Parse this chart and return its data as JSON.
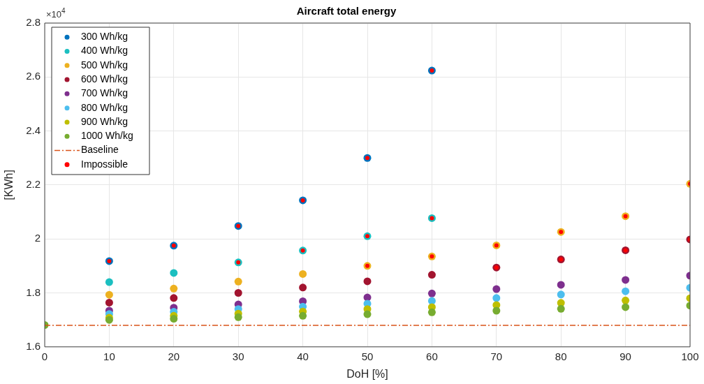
{
  "chart_data": {
    "type": "scatter",
    "title": "Aircraft total energy",
    "xlabel": "DoH [%]",
    "ylabel": "[KWh]",
    "annotations": [
      "×10$^{4}$"
    ],
    "xlim": [
      0,
      100
    ],
    "xticks": [
      0,
      10,
      20,
      30,
      40,
      50,
      60,
      70,
      80,
      90,
      100
    ],
    "ylim": [
      1.6,
      2.8
    ],
    "yticks": [
      1.6,
      1.8,
      2,
      2.2,
      2.4,
      2.6,
      2.8
    ],
    "grid": true,
    "legend": "top left",
    "marker": "circle",
    "series": [
      {
        "name": "300 Wh/kg",
        "color": "#0072bd",
        "x": [
          10,
          20,
          30,
          40,
          50,
          60
        ],
        "values": [
          1.918,
          1.975,
          2.048,
          2.143,
          2.3,
          2.624
        ]
      },
      {
        "name": "400 Wh/kg",
        "color": "#1bbfc0",
        "x": [
          10,
          20,
          30,
          40,
          50,
          60
        ],
        "values": [
          1.84,
          1.874,
          1.913,
          1.957,
          2.01,
          2.077
        ]
      },
      {
        "name": "500 Wh/kg",
        "color": "#edb120",
        "x": [
          10,
          20,
          30,
          40,
          50,
          60,
          70,
          80,
          90,
          100
        ],
        "values": [
          1.793,
          1.816,
          1.842,
          1.87,
          1.9,
          1.935,
          1.976,
          2.026,
          2.084,
          2.204
        ]
      },
      {
        "name": "600 Wh/kg",
        "color": "#a2142f",
        "x": [
          10,
          20,
          30,
          40,
          50,
          60,
          70,
          80,
          90,
          100
        ],
        "values": [
          1.764,
          1.781,
          1.8,
          1.82,
          1.843,
          1.867,
          1.894,
          1.924,
          1.958,
          1.998
        ]
      },
      {
        "name": "700 Wh/kg",
        "color": "#7e2f8e",
        "x": [
          10,
          20,
          30,
          40,
          50,
          60,
          70,
          80,
          90,
          100
        ],
        "values": [
          1.734,
          1.745,
          1.757,
          1.769,
          1.783,
          1.798,
          1.814,
          1.83,
          1.848,
          1.864
        ]
      },
      {
        "name": "800 Wh/kg",
        "color": "#4dbeee",
        "x": [
          10,
          20,
          30,
          40,
          50,
          60,
          70,
          80,
          90,
          100
        ],
        "values": [
          1.722,
          1.73,
          1.74,
          1.749,
          1.76,
          1.77,
          1.781,
          1.794,
          1.806,
          1.819
        ]
      },
      {
        "name": "900 Wh/kg",
        "color": "#bfbf00",
        "x": [
          10,
          20,
          30,
          40,
          50,
          60,
          70,
          80,
          90,
          100
        ],
        "values": [
          1.708,
          1.715,
          1.723,
          1.731,
          1.74,
          1.747,
          1.755,
          1.763,
          1.772,
          1.78
        ]
      },
      {
        "name": "1000 Wh/kg",
        "color": "#77ac30",
        "x": [
          0,
          10,
          20,
          30,
          40,
          50,
          60,
          70,
          80,
          90,
          100
        ],
        "values": [
          1.681,
          1.7,
          1.704,
          1.71,
          1.715,
          1.721,
          1.728,
          1.734,
          1.741,
          1.747,
          1.753
        ]
      },
      {
        "name": "Baseline",
        "type": "line",
        "color": "#d95319",
        "line_style": "dashed",
        "marker": "none",
        "x": [
          0,
          100
        ],
        "values": [
          1.68,
          1.68
        ]
      },
      {
        "name": "Impossible",
        "color": "#ff0000",
        "x": [
          10,
          20,
          30,
          40,
          50,
          60,
          30,
          40,
          50,
          60,
          50,
          60,
          70,
          80,
          90,
          100,
          70,
          80,
          90,
          100
        ],
        "values": [
          1.918,
          1.975,
          2.048,
          2.143,
          2.3,
          2.624,
          1.913,
          1.957,
          2.01,
          2.077,
          1.9,
          1.935,
          1.976,
          2.026,
          2.084,
          2.204,
          1.894,
          1.924,
          1.958,
          1.998
        ]
      }
    ]
  }
}
